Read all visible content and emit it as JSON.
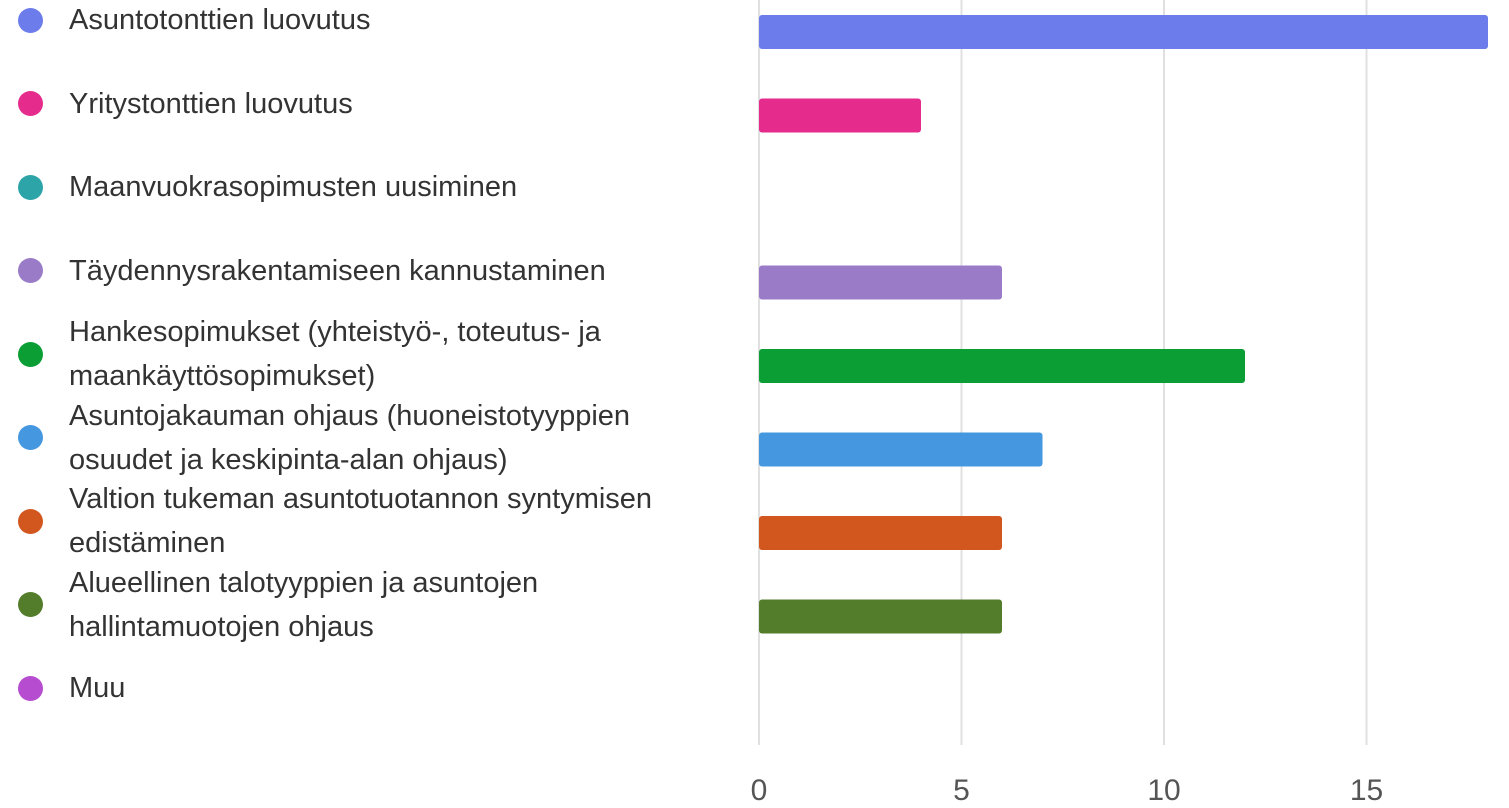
{
  "chart_data": {
    "type": "hbar",
    "categories": [
      "Asuntotonttien luovutus",
      "Yritystonttien luovutus",
      "Maanvuokrasopimusten uusiminen",
      "Täydennysrakentamiseen kannustaminen",
      "Hankesopimukset (yhteistyö-, toteutus- ja maankäyttösopimukset)",
      "Asuntojakauman ohjaus (huoneistotyyppien osuudet ja keskipinta-alan ohjaus)",
      "Valtion tukeman asuntotuotannon syntymisen edistäminen",
      "Alueellinen talotyyppien ja asuntojen hallintamuotojen ohjaus",
      "Muu"
    ],
    "values": [
      18,
      4,
      0,
      6,
      12,
      7,
      6,
      6,
      0
    ],
    "colors": [
      "#6c7ceb",
      "#e52b8c",
      "#2da4a8",
      "#9a7bc8",
      "#0b9e35",
      "#4597e0",
      "#d2571f",
      "#537d2b",
      "#b64ccf"
    ],
    "xlim": [
      0,
      18
    ],
    "xticks": [
      0,
      5,
      10,
      15
    ],
    "grid": true
  }
}
